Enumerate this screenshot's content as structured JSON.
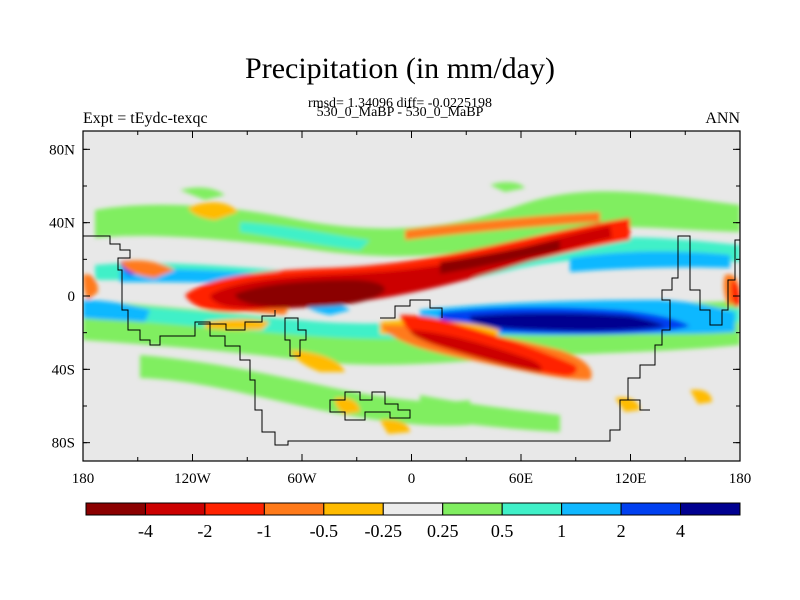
{
  "chart_data": {
    "type": "contour-map",
    "title": "Precipitation (in mm/day)",
    "stats": {
      "rmsd_label": "rmsd=",
      "rmsd": "1.34096",
      "diff_label": "diff=",
      "diff": "-0.0225198"
    },
    "case_label": "530_0_MaBP - 530_0_MaBP",
    "experiment_label": "Expt = tEydc-texqc",
    "season": "ANN",
    "xlim": [
      -180,
      180
    ],
    "ylim": [
      -90,
      90
    ],
    "x_ticks": [
      {
        "value": -180,
        "label": "180"
      },
      {
        "value": -120,
        "label": "120W"
      },
      {
        "value": -60,
        "label": "60W"
      },
      {
        "value": 0,
        "label": "0"
      },
      {
        "value": 60,
        "label": "60E"
      },
      {
        "value": 120,
        "label": "120E"
      },
      {
        "value": 180,
        "label": "180"
      }
    ],
    "y_ticks": [
      {
        "value": 80,
        "label": "80N"
      },
      {
        "value": 40,
        "label": "40N"
      },
      {
        "value": 0,
        "label": "0"
      },
      {
        "value": -40,
        "label": "40S"
      },
      {
        "value": -80,
        "label": "80S"
      }
    ],
    "colorbar": {
      "levels": [
        "-4",
        "-2",
        "-1",
        "-0.5",
        "-0.25",
        "0.25",
        "0.5",
        "1",
        "2",
        "4"
      ],
      "colors": [
        "#8b0000",
        "#cc0000",
        "#ff2200",
        "#ff7a1a",
        "#ffbb00",
        "#ececec",
        "#80ee60",
        "#40f0c8",
        "#10b8ff",
        "#0040f0",
        "#000090"
      ]
    },
    "features": [
      {
        "name": "equatorial-pacific-deficit",
        "level": "< -4",
        "lon": -100,
        "lat": -3
      },
      {
        "name": "north-pacific-deficit-band",
        "level": "-2 to -4",
        "lon": 70,
        "lat": 20
      },
      {
        "name": "south-atlantic-deficit",
        "level": "-2 to -4",
        "lon": 30,
        "lat": -30
      },
      {
        "name": "south-indian-surplus",
        "level": "> 4",
        "lon": 90,
        "lat": -18
      }
    ]
  }
}
